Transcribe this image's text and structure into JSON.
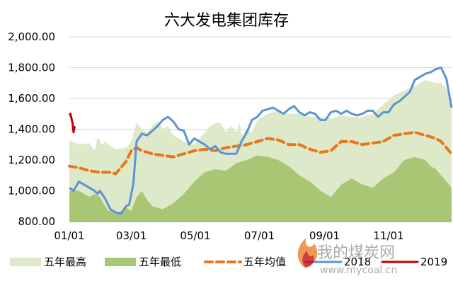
{
  "chart_data": {
    "type": "area",
    "title": "六大发电集团库存",
    "xlabel": "",
    "ylabel": "",
    "ylim": [
      800,
      2000
    ],
    "yticks": [
      800,
      1000,
      1200,
      1400,
      1600,
      1800,
      2000
    ],
    "ytick_labels": [
      "800.00",
      "1,000.00",
      "1,200.00",
      "1,400.00",
      "1,600.00",
      "1,800.00",
      "2,000.00"
    ],
    "x_range_day": [
      1,
      365
    ],
    "xticks_day": [
      1,
      60,
      121,
      182,
      244,
      305
    ],
    "xtick_labels": [
      "01/01",
      "03/01",
      "05/01",
      "07/01",
      "09/01",
      "11/01"
    ],
    "grid": true,
    "legend_position": "bottom",
    "colors": {
      "max_fill": "#dde9c8",
      "min_fill": "#a9c675",
      "avg": "#e8761b",
      "y2018": "#5b93d5",
      "y2019": "#c00000",
      "grid": "#d9d9d9"
    },
    "series": [
      {
        "name": "五年最高",
        "style": "area",
        "x": [
          1,
          10,
          20,
          25,
          28,
          32,
          35,
          38,
          45,
          55,
          60,
          65,
          70,
          75,
          80,
          85,
          90,
          95,
          100,
          110,
          120,
          130,
          135,
          140,
          145,
          150,
          155,
          160,
          163,
          165,
          170,
          175,
          180,
          190,
          200,
          210,
          220,
          230,
          240,
          250,
          260,
          270,
          280,
          290,
          300,
          310,
          320,
          330,
          340,
          350,
          355,
          360,
          365
        ],
        "values": [
          1330,
          1300,
          1310,
          1260,
          1350,
          1300,
          1320,
          1300,
          1270,
          1280,
          1320,
          1440,
          1400,
          1380,
          1420,
          1450,
          1400,
          1420,
          1360,
          1320,
          1300,
          1380,
          1420,
          1440,
          1440,
          1380,
          1420,
          1380,
          1440,
          1360,
          1400,
          1380,
          1460,
          1500,
          1520,
          1500,
          1500,
          1480,
          1480,
          1470,
          1490,
          1480,
          1480,
          1500,
          1560,
          1620,
          1650,
          1680,
          1720,
          1700,
          1700,
          1660,
          1600
        ]
      },
      {
        "name": "五年最低",
        "style": "area",
        "x": [
          1,
          10,
          20,
          25,
          30,
          35,
          38,
          45,
          52,
          55,
          60,
          65,
          70,
          75,
          80,
          90,
          100,
          110,
          120,
          130,
          140,
          150,
          160,
          170,
          180,
          190,
          200,
          210,
          220,
          230,
          240,
          250,
          260,
          270,
          280,
          290,
          300,
          310,
          320,
          330,
          340,
          345,
          350,
          355,
          360,
          365
        ],
        "values": [
          1000,
          1000,
          960,
          980,
          960,
          900,
          870,
          860,
          870,
          890,
          870,
          960,
          1000,
          940,
          900,
          880,
          920,
          980,
          1060,
          1120,
          1140,
          1130,
          1180,
          1200,
          1230,
          1220,
          1200,
          1160,
          1100,
          1060,
          1000,
          960,
          1040,
          1080,
          1040,
          1020,
          1080,
          1120,
          1200,
          1220,
          1200,
          1160,
          1140,
          1100,
          1060,
          1020
        ]
      },
      {
        "name": "五年均值",
        "style": "dashed-line",
        "x": [
          1,
          10,
          20,
          30,
          40,
          45,
          50,
          55,
          60,
          65,
          70,
          80,
          90,
          100,
          110,
          120,
          130,
          140,
          150,
          160,
          170,
          180,
          190,
          200,
          210,
          220,
          230,
          240,
          250,
          260,
          270,
          280,
          290,
          300,
          310,
          320,
          330,
          340,
          350,
          355,
          360,
          365
        ],
        "values": [
          1160,
          1150,
          1130,
          1120,
          1120,
          1110,
          1150,
          1190,
          1260,
          1280,
          1260,
          1240,
          1230,
          1220,
          1240,
          1260,
          1270,
          1260,
          1280,
          1290,
          1300,
          1320,
          1340,
          1330,
          1300,
          1300,
          1270,
          1250,
          1260,
          1320,
          1320,
          1300,
          1310,
          1320,
          1360,
          1370,
          1380,
          1360,
          1340,
          1320,
          1280,
          1240
        ]
      },
      {
        "name": "2018",
        "style": "line",
        "x": [
          1,
          5,
          10,
          15,
          20,
          25,
          28,
          30,
          35,
          40,
          45,
          50,
          55,
          58,
          60,
          62,
          65,
          70,
          75,
          80,
          85,
          90,
          95,
          100,
          105,
          110,
          115,
          120,
          125,
          130,
          135,
          140,
          145,
          150,
          155,
          160,
          165,
          170,
          175,
          180,
          185,
          190,
          195,
          200,
          205,
          210,
          215,
          220,
          225,
          230,
          235,
          240,
          245,
          250,
          255,
          260,
          265,
          270,
          275,
          280,
          285,
          290,
          295,
          300,
          305,
          310,
          315,
          320,
          325,
          330,
          335,
          340,
          345,
          350,
          355,
          360,
          365
        ],
        "values": [
          1020,
          1000,
          1060,
          1040,
          1020,
          1000,
          980,
          1000,
          950,
          880,
          860,
          850,
          900,
          910,
          980,
          1050,
          1320,
          1370,
          1360,
          1390,
          1420,
          1460,
          1480,
          1450,
          1400,
          1390,
          1300,
          1340,
          1320,
          1300,
          1270,
          1290,
          1250,
          1240,
          1240,
          1240,
          1320,
          1380,
          1460,
          1480,
          1520,
          1530,
          1540,
          1520,
          1500,
          1530,
          1550,
          1510,
          1490,
          1510,
          1500,
          1460,
          1460,
          1510,
          1520,
          1500,
          1520,
          1500,
          1490,
          1500,
          1520,
          1520,
          1480,
          1510,
          1510,
          1560,
          1580,
          1610,
          1640,
          1720,
          1740,
          1760,
          1770,
          1790,
          1800,
          1730,
          1540
        ]
      },
      {
        "name": "2019",
        "style": "line",
        "x": [
          1,
          2,
          3,
          4,
          5,
          6
        ],
        "values": [
          1490,
          1500,
          1470,
          1440,
          1380,
          1420
        ]
      }
    ]
  },
  "watermark": {
    "brand_cn": "我的煤炭网",
    "url": "www.mycoal.cn"
  }
}
